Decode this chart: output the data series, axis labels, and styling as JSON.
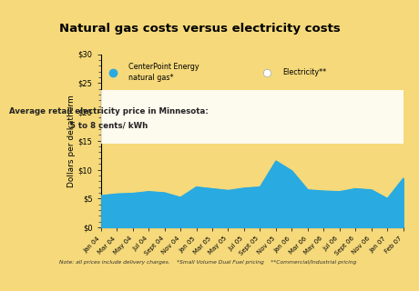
{
  "title": "Natural gas costs versus electricity costs",
  "title_bg": "#f0c830",
  "bg_color": "#f5d97a",
  "ylabel": "Dollars per dekatherm",
  "ylim": [
    0,
    30
  ],
  "yticks": [
    0,
    5,
    10,
    15,
    20,
    25,
    30
  ],
  "ytick_labels": [
    "$0",
    "$5",
    "$10",
    "$15",
    "$20",
    "$25",
    "$30"
  ],
  "area_color": "#29aae1",
  "elec_band_color": "#ffffff",
  "elec_band_alpha": 0.88,
  "elec_band_low": 14.5,
  "elec_band_high": 23.8,
  "annotation_line1": "Average retail electricity price in Minnesota:",
  "annotation_line2": "5 to 8 cents/ kWh",
  "note_text": "Note: all prices include delivery charges.    *Small Volume Dual Fuel pricing    **Commercial/Industrial pricing",
  "legend_gas": "CenterPoint Energy\nnatural gas*",
  "legend_elec": "Electricity**",
  "x_labels": [
    "Jan 04",
    "Mar 04",
    "May 04",
    "Jul 04",
    "Sept 04",
    "Nov 04",
    "Jan 05",
    "Mar 05",
    "May 05",
    "Jul 05",
    "Sept 05",
    "Nov 05",
    "Jan 06",
    "Mar 06",
    "May 06",
    "Jul 06",
    "Sept 06",
    "Nov 06",
    "Jan 07",
    "Feb 07"
  ],
  "gas_values": [
    5.5,
    5.8,
    5.9,
    6.2,
    6.0,
    5.2,
    7.0,
    6.7,
    6.4,
    6.8,
    7.0,
    11.5,
    9.8,
    6.5,
    6.3,
    6.2,
    6.7,
    6.5,
    5.0,
    8.5
  ]
}
